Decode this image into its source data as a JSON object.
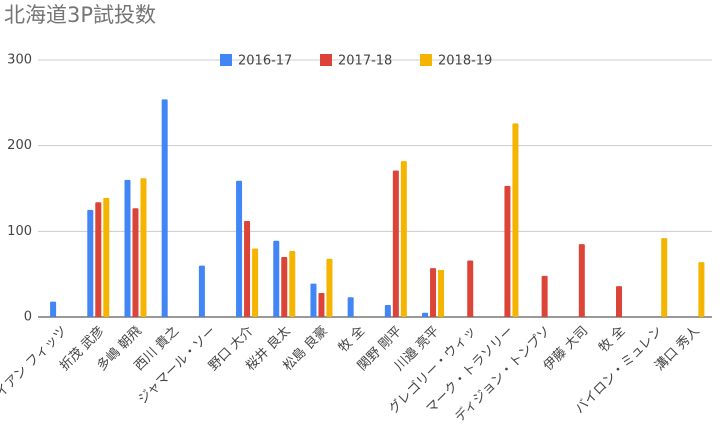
{
  "chart_data": {
    "type": "bar",
    "title": "北海道3P試投数",
    "categories": [
      "ライアン フィッツ",
      "折茂 武彦",
      "多嶋 朝飛",
      "西川 貴之",
      "ジャマール・ソー",
      "野口 大介",
      "桜井 良太",
      "松島 良豪",
      "牧 全",
      "関野 剛平",
      "川邉 亮平",
      "グレゴリー・ウィッ",
      "マーク・トラソリー",
      "ディジョン・トンプソ",
      "伊藤 大司",
      "牧 全",
      "バイロン・ミュレン",
      "溝口 秀人"
    ],
    "series": [
      {
        "name": "2016-17",
        "color": "#4285f4",
        "values": [
          18,
          125,
          160,
          254,
          60,
          159,
          89,
          39,
          23,
          14,
          5,
          null,
          null,
          null,
          null,
          null,
          null,
          null
        ]
      },
      {
        "name": "2017-18",
        "color": "#db4437",
        "values": [
          null,
          134,
          127,
          null,
          null,
          112,
          70,
          28,
          null,
          171,
          57,
          66,
          153,
          48,
          85,
          36,
          null,
          null
        ]
      },
      {
        "name": "2018-19",
        "color": "#f4b400",
        "values": [
          null,
          139,
          162,
          null,
          null,
          80,
          77,
          68,
          null,
          182,
          55,
          null,
          226,
          null,
          null,
          null,
          92,
          64
        ]
      }
    ],
    "ylim": [
      0,
      300
    ],
    "yticks": [
      0,
      100,
      200,
      300
    ],
    "grid": true,
    "legend": "top"
  }
}
